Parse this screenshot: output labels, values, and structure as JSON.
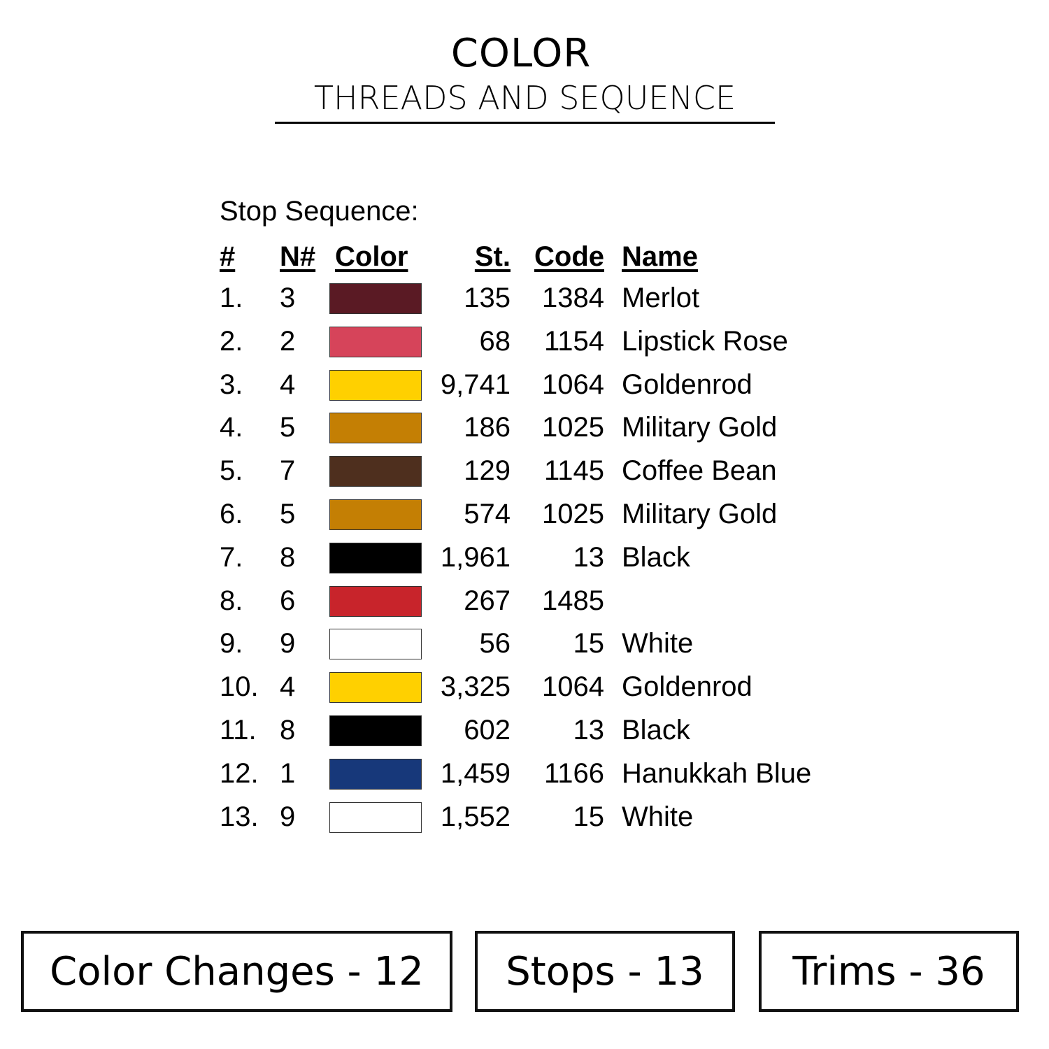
{
  "header": {
    "title": "COLOR",
    "subtitle": "THREADS AND SEQUENCE"
  },
  "table": {
    "label": "Stop Sequence:",
    "columns": [
      "#",
      "N#",
      "Color",
      "St.",
      "Code",
      "Name"
    ],
    "rows": [
      {
        "num": "1.",
        "n": "3",
        "color": "#5a1a24",
        "st": "135",
        "code": "1384",
        "name": "Merlot"
      },
      {
        "num": "2.",
        "n": "2",
        "color": "#d6445a",
        "st": "68",
        "code": "1154",
        "name": "Lipstick Rose"
      },
      {
        "num": "3.",
        "n": "4",
        "color": "#ffd000",
        "st": "9,741",
        "code": "1064",
        "name": "Goldenrod"
      },
      {
        "num": "4.",
        "n": "5",
        "color": "#c47f04",
        "st": "186",
        "code": "1025",
        "name": "Military Gold"
      },
      {
        "num": "5.",
        "n": "7",
        "color": "#4e2f1e",
        "st": "129",
        "code": "1145",
        "name": "Coffee Bean"
      },
      {
        "num": "6.",
        "n": "5",
        "color": "#c47f04",
        "st": "574",
        "code": "1025",
        "name": "Military Gold"
      },
      {
        "num": "7.",
        "n": "8",
        "color": "#000000",
        "st": "1,961",
        "code": "13",
        "name": "Black"
      },
      {
        "num": "8.",
        "n": "6",
        "color": "#c8242b",
        "st": "267",
        "code": "1485",
        "name": ""
      },
      {
        "num": "9.",
        "n": "9",
        "color": "#ffffff",
        "st": "56",
        "code": "15",
        "name": "White"
      },
      {
        "num": "10.",
        "n": "4",
        "color": "#ffd000",
        "st": "3,325",
        "code": "1064",
        "name": "Goldenrod"
      },
      {
        "num": "11.",
        "n": "8",
        "color": "#000000",
        "st": "602",
        "code": "13",
        "name": "Black"
      },
      {
        "num": "12.",
        "n": "1",
        "color": "#17387a",
        "st": "1,459",
        "code": "1166",
        "name": "Hanukkah Blue"
      },
      {
        "num": "13.",
        "n": "9",
        "color": "#ffffff",
        "st": "1,552",
        "code": "15",
        "name": "White"
      }
    ]
  },
  "summary": {
    "color_changes": "Color Changes - 12",
    "stops": "Stops - 13",
    "trims": "Trims - 36"
  }
}
